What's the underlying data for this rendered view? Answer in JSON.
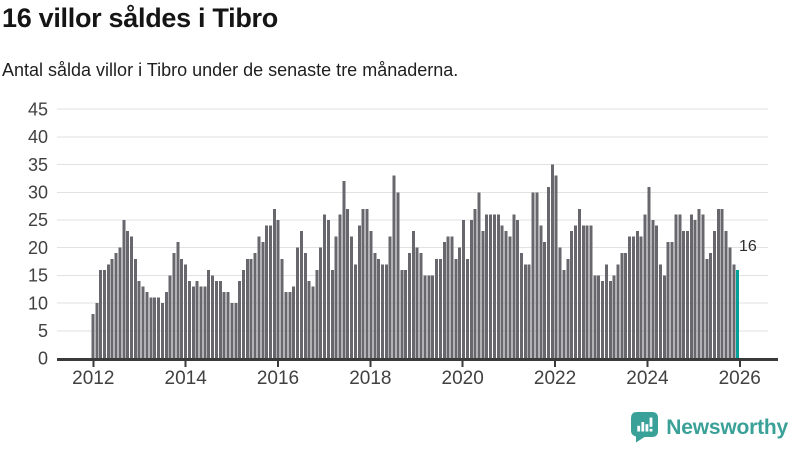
{
  "header": {
    "title": "16 villor såldes i Tibro",
    "subtitle": "Antal sålda villor i Tibro under de senaste tre månaderna."
  },
  "chart_data": {
    "type": "bar",
    "title": "16 villor såldes i Tibro",
    "ylabel": "",
    "xlabel": "",
    "ylim": [
      0,
      45
    ],
    "grid": true,
    "start_year": 2012,
    "frequency": "monthly",
    "y_ticks": [
      0,
      5,
      10,
      15,
      20,
      25,
      30,
      35,
      40,
      45
    ],
    "x_tick_labels": [
      "2012",
      "2014",
      "2016",
      "2018",
      "2020",
      "2022",
      "2024",
      "2026"
    ],
    "annotation": "16",
    "highlight_last_value": 16,
    "bar_color": "#67676d",
    "highlight_color": "#00a09b",
    "values": [
      8,
      10,
      16,
      16,
      17,
      18,
      19,
      20,
      25,
      23,
      22,
      18,
      14,
      13,
      12,
      11,
      11,
      11,
      10,
      12,
      15,
      19,
      21,
      18,
      17,
      14,
      13,
      14,
      13,
      13,
      16,
      15,
      14,
      14,
      12,
      12,
      10,
      10,
      14,
      16,
      18,
      18,
      19,
      22,
      21,
      24,
      24,
      27,
      25,
      18,
      12,
      12,
      13,
      20,
      23,
      19,
      14,
      13,
      16,
      20,
      26,
      25,
      16,
      22,
      26,
      32,
      27,
      22,
      17,
      24,
      27,
      27,
      23,
      19,
      18,
      17,
      17,
      22,
      33,
      30,
      16,
      16,
      19,
      23,
      20,
      19,
      15,
      15,
      15,
      18,
      18,
      21,
      22,
      22,
      18,
      20,
      25,
      18,
      25,
      27,
      30,
      23,
      26,
      26,
      26,
      26,
      24,
      23,
      22,
      26,
      25,
      19,
      17,
      17,
      30,
      30,
      24,
      21,
      31,
      35,
      33,
      20,
      16,
      18,
      23,
      24,
      27,
      24,
      24,
      24,
      15,
      15,
      14,
      17,
      14,
      15,
      17,
      19,
      19,
      22,
      22,
      23,
      22,
      26,
      31,
      25,
      24,
      17,
      15,
      21,
      21,
      26,
      26,
      23,
      23,
      26,
      25,
      27,
      26,
      18,
      19,
      23,
      27,
      27,
      23,
      20,
      17,
      16
    ]
  },
  "footer": {
    "brand": "Newsworthy",
    "brand_color": "#3aa199",
    "logo_icon": "bar-chart-speech-bubble"
  }
}
